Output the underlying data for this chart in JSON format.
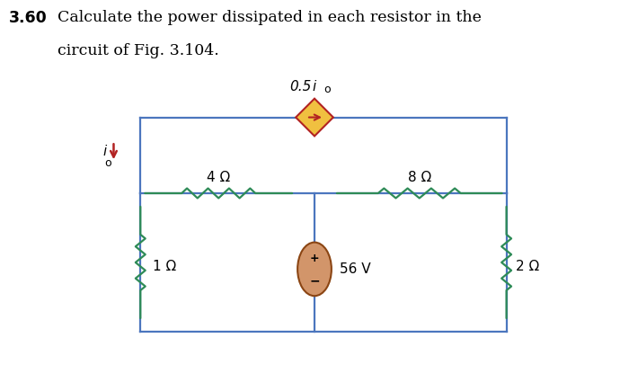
{
  "title_number": "3.60",
  "title_text": "Calculate the power dissipated in each resistor in the",
  "title_text2": "circuit of Fig. 3.104.",
  "title_fontsize": 12.5,
  "circuit_color": "#4B76BE",
  "resistor_color": "#2E8B57",
  "dep_source_fill": "#F0C040",
  "dep_source_edge": "#B22222",
  "dep_arrow_color": "#B22222",
  "vs_fill": "#D2956A",
  "vs_edge": "#8B4513",
  "io_arrow_color": "#B22222",
  "io_label_color": "#000000",
  "label_color": "#000000",
  "bg_color": "#ffffff",
  "label_4ohm": "4 Ω",
  "label_8ohm": "8 Ω",
  "label_1ohm": "1 Ω",
  "label_2ohm": "2 Ω",
  "label_56v": "56 V",
  "label_dep": "0.5i",
  "label_dep_sub": "o",
  "label_io": "i",
  "label_io_sub": "o",
  "lw_wire": 1.6,
  "lw_resistor": 1.6
}
